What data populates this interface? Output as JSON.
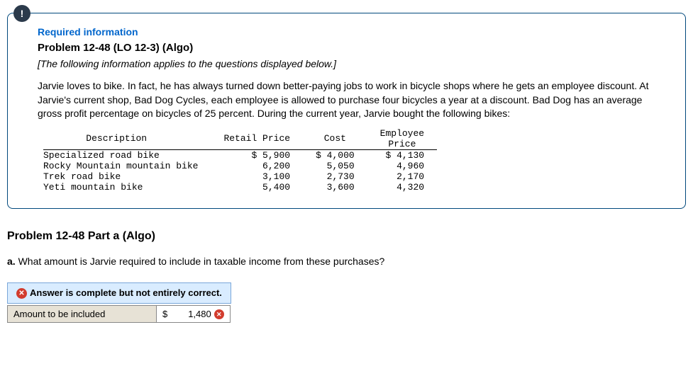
{
  "badge_symbol": "!",
  "required_info_label": "Required information",
  "problem_heading": "Problem 12-48 (LO 12-3) (Algo)",
  "applies_note": "[The following information applies to the questions displayed below.]",
  "body_paragraph": "Jarvie loves to bike. In fact, he has always turned down better-paying jobs to work in bicycle shops where he gets an employee discount. At Jarvie's current shop, Bad Dog Cycles, each employee is allowed to purchase four bicycles a year at a discount. Bad Dog has an average gross profit percentage on bicycles of 25 percent. During the current year, Jarvie bought the following bikes:",
  "bike_table": {
    "columns": [
      "Description",
      "Retail Price",
      "Cost",
      "Employee\nPrice"
    ],
    "rows": [
      [
        "Specialized road bike",
        "$ 5,900",
        "$ 4,000",
        "$ 4,130"
      ],
      [
        "Rocky Mountain mountain bike",
        "6,200",
        "5,050",
        "4,960"
      ],
      [
        "Trek road bike",
        "3,100",
        "2,730",
        "2,170"
      ],
      [
        "Yeti mountain bike",
        "5,400",
        "3,600",
        "4,320"
      ]
    ],
    "font_family": "Courier New",
    "border_color": "#000000"
  },
  "part_heading": "Problem 12-48 Part a (Algo)",
  "question_prefix": "a.",
  "question_text": " What amount is Jarvie required to include in taxable income from these purchases?",
  "feedback": {
    "icon": "x",
    "icon_bg": "#d23c2e",
    "text": "Answer is complete but not entirely correct.",
    "row_bg": "#d9ecff",
    "row_border": "#7aa7d9"
  },
  "answer": {
    "label": "Amount to be included",
    "currency": "$",
    "value": "1,480",
    "mark_icon": "x",
    "label_bg": "#e7e2d6"
  },
  "colors": {
    "card_border": "#00487c",
    "badge_bg": "#2b3a4b",
    "link_blue": "#0066cc"
  }
}
